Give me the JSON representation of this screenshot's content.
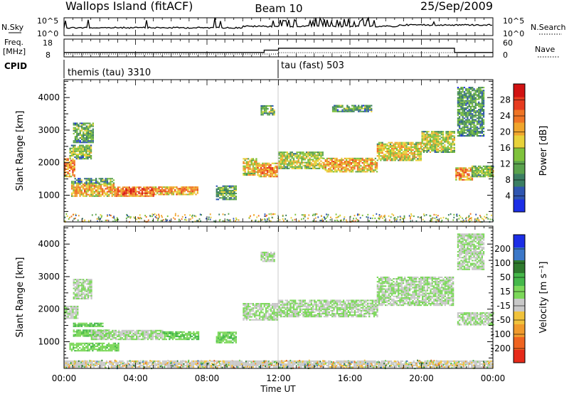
{
  "header": {
    "site": "Wallops Island (fitACF)",
    "beam": "Beam 10",
    "date": "25/Sep/2009"
  },
  "aux_panels": {
    "nsky_label": "N.Sky",
    "nsearch_label": "N.Search",
    "nsky_ticks": [
      "10^5",
      "10^0"
    ],
    "nsearch_ticks": [
      "10^5",
      "10^0"
    ],
    "freq_label_line1": "Freq.",
    "freq_label_line2": "[MHz]",
    "freq_ticks": [
      "18",
      "8"
    ],
    "nave_label": "Nave",
    "nave_ticks": [
      "60",
      "0"
    ],
    "cpid_label": "CPID",
    "cpid_modes": [
      {
        "name": "themis (tau) 3310",
        "start_hour": 0
      },
      {
        "name": "tau (fast) 503",
        "start_hour": 12
      }
    ],
    "freq_steps": [
      [
        0,
        10.5
      ],
      [
        11.2,
        10.5
      ],
      [
        11.2,
        11.8
      ],
      [
        12.0,
        11.8
      ],
      [
        12.0,
        12.9
      ],
      [
        21.85,
        12.9
      ],
      [
        21.85,
        10.5
      ],
      [
        24,
        10.5
      ]
    ]
  },
  "chart_data": [
    {
      "type": "heatmap",
      "name": "power",
      "ylabel": "Slant Range [km]",
      "yticks": [
        1000,
        2000,
        3000,
        4000
      ],
      "ylim": [
        180,
        4550
      ],
      "xlim": [
        0,
        24
      ],
      "colorbar_label": "Power [dB]",
      "colorbar_ticks": [
        "4",
        "8",
        "12",
        "16",
        "20",
        "24",
        "28"
      ],
      "colorbar_colors": [
        "#1c2ee6",
        "#2f55b0",
        "#3b7e63",
        "#5aa24d",
        "#7fc23c",
        "#e8d23a",
        "#f0a52c",
        "#ef7425",
        "#e63b1f",
        "#d11212"
      ],
      "bands": [
        {
          "x0": 0.0,
          "x1": 0.6,
          "r0": 1550,
          "r1": 2100,
          "v": 22
        },
        {
          "x0": 0.3,
          "x1": 1.5,
          "r0": 2100,
          "r1": 2550,
          "v": 14
        },
        {
          "x0": 0.5,
          "x1": 1.6,
          "r0": 2600,
          "r1": 3200,
          "v": 12
        },
        {
          "x0": 0.4,
          "x1": 2.8,
          "r0": 1350,
          "r1": 1500,
          "v": 12
        },
        {
          "x0": 0.4,
          "x1": 2.8,
          "r0": 950,
          "r1": 1350,
          "v": 20
        },
        {
          "x0": 2.8,
          "x1": 5.0,
          "r0": 950,
          "r1": 1250,
          "v": 24
        },
        {
          "x0": 5.0,
          "x1": 7.5,
          "r0": 1000,
          "r1": 1250,
          "v": 22
        },
        {
          "x0": 8.5,
          "x1": 9.6,
          "r0": 850,
          "r1": 1300,
          "v": 12
        },
        {
          "x0": 10.0,
          "x1": 10.8,
          "r0": 1600,
          "r1": 2100,
          "v": 18
        },
        {
          "x0": 10.8,
          "x1": 11.9,
          "r0": 1550,
          "r1": 2000,
          "v": 22
        },
        {
          "x0": 11.0,
          "x1": 11.8,
          "r0": 3450,
          "r1": 3750,
          "v": 14
        },
        {
          "x0": 12.0,
          "x1": 14.5,
          "r0": 1800,
          "r1": 2300,
          "v": 16
        },
        {
          "x0": 14.5,
          "x1": 17.5,
          "r0": 1700,
          "r1": 2150,
          "v": 20
        },
        {
          "x0": 17.5,
          "x1": 20.0,
          "r0": 2050,
          "r1": 2600,
          "v": 18
        },
        {
          "x0": 20.0,
          "x1": 21.8,
          "r0": 2300,
          "r1": 2950,
          "v": 16
        },
        {
          "x0": 15.0,
          "x1": 17.2,
          "r0": 3550,
          "r1": 3750,
          "v": 12
        },
        {
          "x0": 21.9,
          "x1": 22.8,
          "r0": 1450,
          "r1": 1850,
          "v": 22
        },
        {
          "x0": 22.8,
          "x1": 24.0,
          "r0": 1550,
          "r1": 1900,
          "v": 14
        },
        {
          "x0": 22.0,
          "x1": 23.5,
          "r0": 2800,
          "r1": 4300,
          "v": 10
        }
      ]
    },
    {
      "type": "heatmap",
      "name": "velocity",
      "ylabel": "Slant Range [km]",
      "yticks": [
        1000,
        2000,
        3000,
        4000
      ],
      "ylim": [
        180,
        4550
      ],
      "xlim": [
        0,
        24
      ],
      "xticks": [
        "00:00",
        "04:00",
        "08:00",
        "12:00",
        "16:00",
        "20:00",
        "00:00"
      ],
      "xlabel": "Time UT",
      "colorbar_label": "Velocity [m s⁻¹]",
      "colorbar_ticks": [
        "200",
        "100",
        "50",
        "15",
        "-15",
        "-50",
        "-100",
        "-200"
      ],
      "colorbar_colors": [
        "#1c2ee6",
        "#3c78c8",
        "#2f7a2e",
        "#45b84a",
        "#7cd85a",
        "#c8c8c8",
        "#f0c23c",
        "#f09a2c",
        "#ef6420",
        "#e62a1a"
      ],
      "bands": [
        {
          "x0": 0.0,
          "x1": 0.8,
          "r0": 1700,
          "r1": 2100,
          "v": 0
        },
        {
          "x0": 0.5,
          "x1": 1.5,
          "r0": 2300,
          "r1": 2900,
          "v": 0
        },
        {
          "x0": 0.5,
          "x1": 2.2,
          "r0": 1450,
          "r1": 1550,
          "v": 40
        },
        {
          "x0": 0.5,
          "x1": 2.5,
          "r0": 1150,
          "r1": 1350,
          "v": 40
        },
        {
          "x0": 1.5,
          "x1": 5.5,
          "r0": 1050,
          "r1": 1350,
          "v": 0
        },
        {
          "x0": 5.5,
          "x1": 7.5,
          "r0": 1050,
          "r1": 1300,
          "v": 40
        },
        {
          "x0": 0.3,
          "x1": 3.0,
          "r0": 700,
          "r1": 950,
          "v": 30
        },
        {
          "x0": 8.5,
          "x1": 9.6,
          "r0": 950,
          "r1": 1300,
          "v": 40
        },
        {
          "x0": 10.0,
          "x1": 11.9,
          "r0": 1650,
          "r1": 2150,
          "v": 0
        },
        {
          "x0": 11.0,
          "x1": 11.8,
          "r0": 3450,
          "r1": 3750,
          "v": 0
        },
        {
          "x0": 12.0,
          "x1": 17.5,
          "r0": 1750,
          "r1": 2250,
          "v": 0
        },
        {
          "x0": 17.5,
          "x1": 21.8,
          "r0": 2100,
          "r1": 3000,
          "v": 0
        },
        {
          "x0": 22.0,
          "x1": 24.0,
          "r0": 1500,
          "r1": 1900,
          "v": 0
        },
        {
          "x0": 22.0,
          "x1": 23.5,
          "r0": 3200,
          "r1": 4300,
          "v": 0
        },
        {
          "x0": 0.0,
          "x1": 24.0,
          "r0": 200,
          "r1": 400,
          "v": -30
        }
      ]
    }
  ]
}
